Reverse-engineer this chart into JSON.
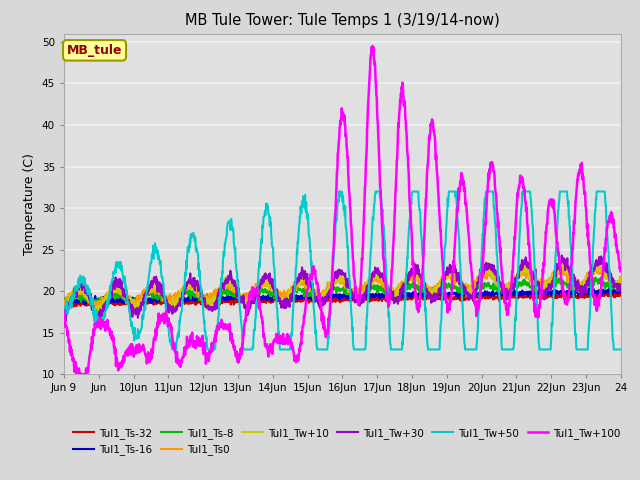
{
  "title": "MB Tule Tower: Tule Temps 1 (3/19/14-now)",
  "ylabel": "Temperature (C)",
  "ylim": [
    10,
    51
  ],
  "yticks": [
    10,
    15,
    20,
    25,
    30,
    35,
    40,
    45,
    50
  ],
  "xtick_labels": [
    "Jun 9",
    "Jun",
    "10Jun",
    "11Jun",
    "12Jun",
    "13Jun",
    "14Jun",
    "15Jun",
    "16Jun",
    "17Jun",
    "18Jun",
    "19Jun",
    "20Jun",
    "21Jun",
    "22Jun",
    "23Jun",
    "24"
  ],
  "background_color": "#d8d8d8",
  "plot_bg_color": "#e0e0e0",
  "grid_color": "#f0f0f0",
  "series": {
    "Tul1_Ts-32": {
      "color": "#cc0000",
      "lw": 1.5
    },
    "Tul1_Ts-16": {
      "color": "#0000cc",
      "lw": 1.5
    },
    "Tul1_Ts-8": {
      "color": "#00bb00",
      "lw": 1.5
    },
    "Tul1_Ts0": {
      "color": "#ff9900",
      "lw": 1.5
    },
    "Tul1_Tw+10": {
      "color": "#cccc00",
      "lw": 1.5
    },
    "Tul1_Tw+30": {
      "color": "#9900cc",
      "lw": 1.5
    },
    "Tul1_Tw+50": {
      "color": "#00cccc",
      "lw": 1.5
    },
    "Tul1_Tw+100": {
      "color": "#ff00ff",
      "lw": 1.8
    }
  },
  "annotation_box": {
    "text": "MB_tule",
    "fontsize": 9,
    "text_color": "#990000",
    "bg_color": "#ffff99",
    "border_color": "#999900"
  },
  "legend_entries": [
    "Tul1_Ts-32",
    "Tul1_Ts-16",
    "Tul1_Ts-8",
    "Tul1_Ts0",
    "Tul1_Tw+10",
    "Tul1_Tw+30",
    "Tul1_Tw+50",
    "Tul1_Tw+100"
  ]
}
